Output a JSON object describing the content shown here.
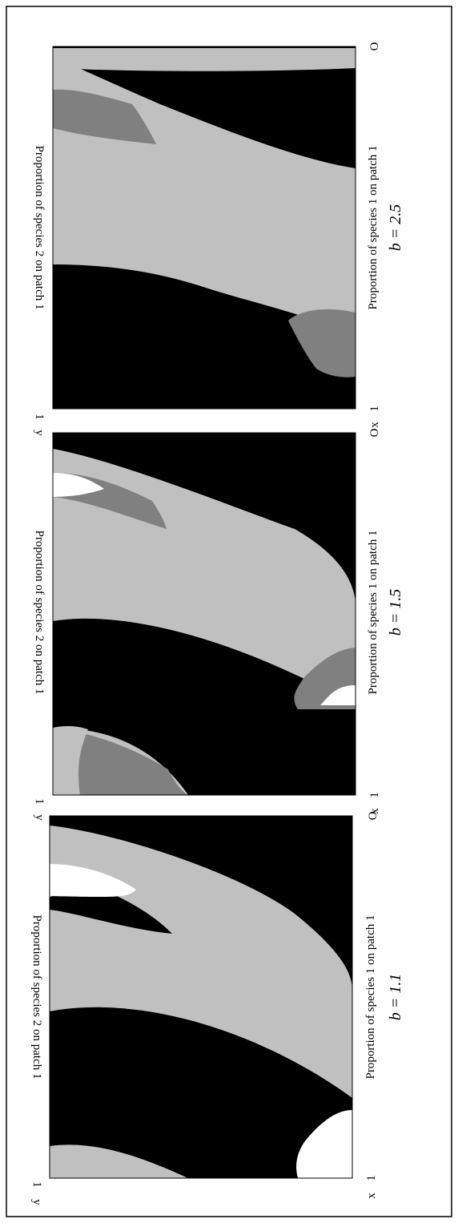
{
  "colors": {
    "black_region": "#000000",
    "light_gray_region": "#c0c0c0",
    "dark_gray_region": "#808080",
    "white_region": "#ffffff",
    "border": "#000000"
  },
  "panels": [
    {
      "b_label": "b = 1.1",
      "x_axis_label": "Proportion of species 1 on patch 1",
      "y_axis_label": "Proportion of species 2 on patch 1",
      "origin_label": "O",
      "x_end_tick": "1",
      "x_axis_name": "x",
      "y_end_tick": "1",
      "y_axis_name": "y"
    },
    {
      "b_label": "b = 1.5",
      "x_axis_label": "Proportion of species 1 on patch 1",
      "y_axis_label": "Proportion of species 2 on patch 1",
      "origin_label": "O",
      "x_end_tick": "1",
      "x_axis_name": "x",
      "y_end_tick": "1",
      "y_axis_name": "y"
    },
    {
      "b_label": "b = 2.5",
      "x_axis_label": "Proportion of species 1 on patch 1",
      "y_axis_label": "Proportion of species 2 on patch 1",
      "origin_label": "O",
      "x_end_tick": "1",
      "x_axis_name": "x",
      "y_end_tick": "1",
      "y_axis_name": "y"
    }
  ]
}
